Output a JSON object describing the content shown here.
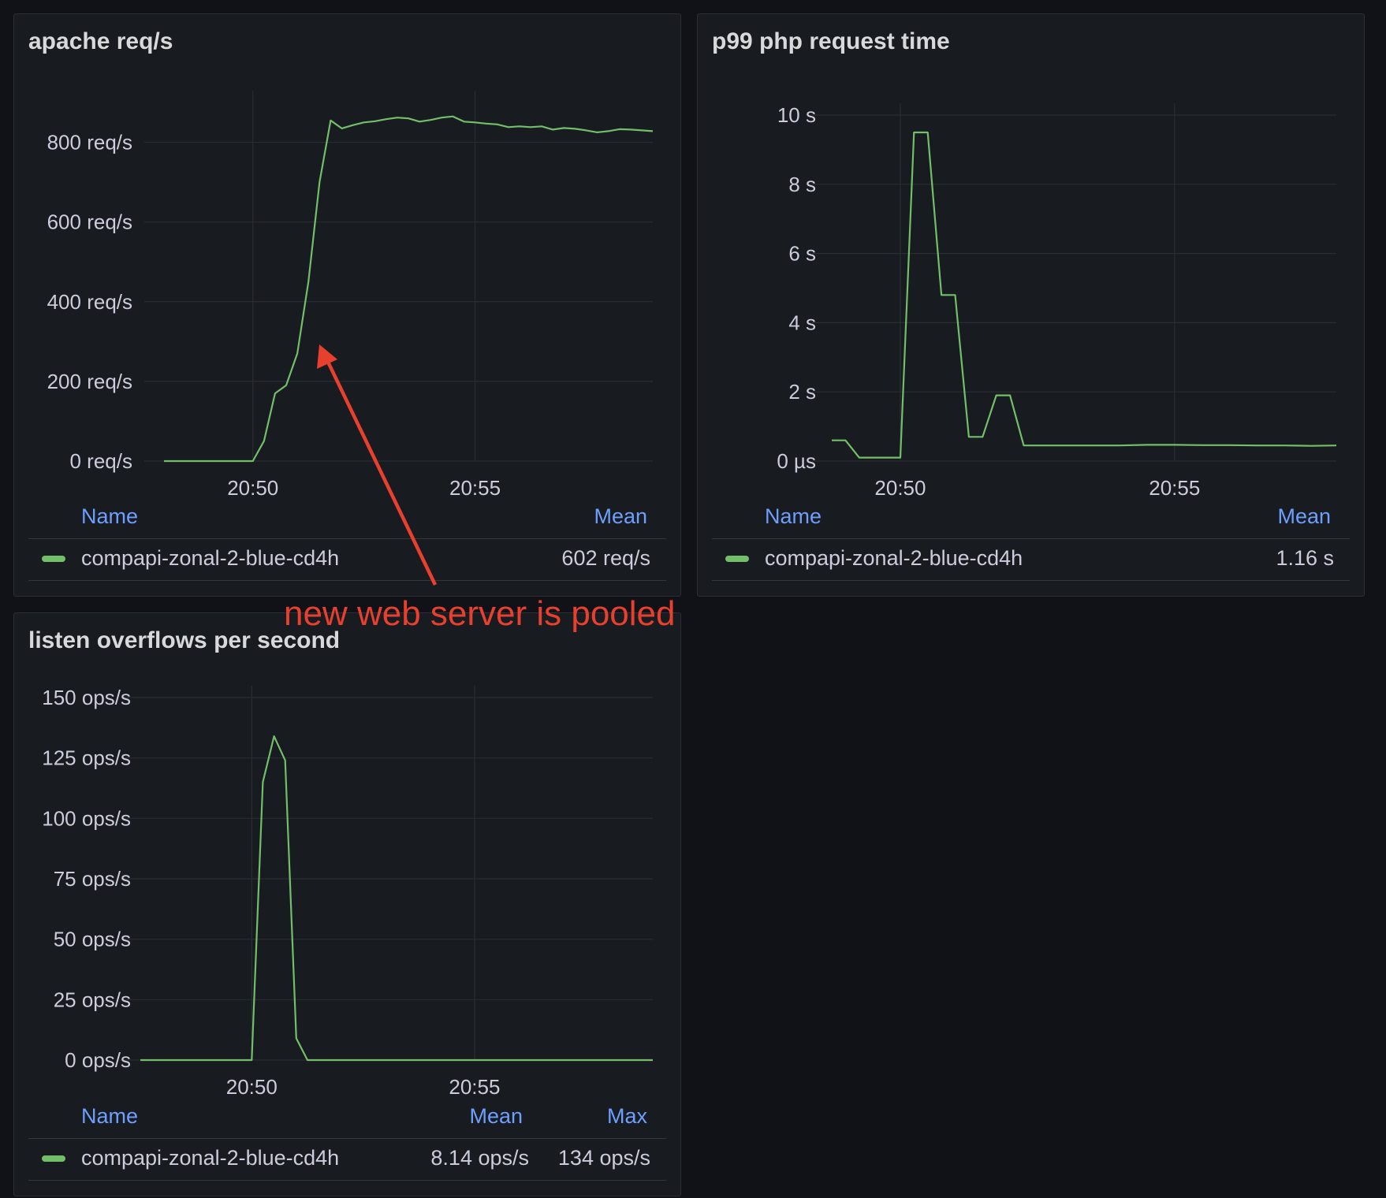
{
  "annotation": {
    "text": "new web server is pooled",
    "color": "#e8402f"
  },
  "colors": {
    "series": "#73bf69",
    "legend_header": "#6e9fff",
    "panel_bg": "#181b1f",
    "page_bg": "#111217"
  },
  "panels": [
    {
      "title": "apache req/s",
      "legend": {
        "headers": [
          "Name",
          "Mean"
        ],
        "rows": [
          {
            "name": "compapi-zonal-2-blue-cd4h",
            "values": [
              "602 req/s"
            ]
          }
        ]
      }
    },
    {
      "title": "p99 php request time",
      "legend": {
        "headers": [
          "Name",
          "Mean"
        ],
        "rows": [
          {
            "name": "compapi-zonal-2-blue-cd4h",
            "values": [
              "1.16 s"
            ]
          }
        ]
      }
    },
    {
      "title": "listen overflows per second",
      "legend": {
        "headers": [
          "Name",
          "Mean",
          "Max"
        ],
        "rows": [
          {
            "name": "compapi-zonal-2-blue-cd4h",
            "values": [
              "8.14 ops/s",
              "134 ops/s"
            ]
          }
        ]
      }
    }
  ],
  "chart_data": [
    {
      "type": "line",
      "title": "apache req/s",
      "xlabel": "",
      "ylabel": "",
      "x_unit": "minutes",
      "x_ticks": [
        {
          "value": 1250,
          "label": "20:50"
        },
        {
          "value": 1255,
          "label": "20:55"
        }
      ],
      "xlim": [
        1248,
        1259
      ],
      "ylim": [
        0,
        900
      ],
      "y_ticks": [
        {
          "value": 0,
          "label": "0 req/s"
        },
        {
          "value": 200,
          "label": "200 req/s"
        },
        {
          "value": 400,
          "label": "400 req/s"
        },
        {
          "value": 600,
          "label": "600 req/s"
        },
        {
          "value": 800,
          "label": "800 req/s"
        }
      ],
      "grid": true,
      "series": [
        {
          "name": "compapi-zonal-2-blue-cd4h",
          "x": [
            1248.0,
            1248.25,
            1248.5,
            1248.75,
            1249.0,
            1249.25,
            1249.5,
            1249.75,
            1250.0,
            1250.25,
            1250.5,
            1250.75,
            1251.0,
            1251.25,
            1251.5,
            1251.75,
            1252.0,
            1252.25,
            1252.5,
            1252.75,
            1253.0,
            1253.25,
            1253.5,
            1253.75,
            1254.0,
            1254.25,
            1254.5,
            1254.75,
            1255.0,
            1255.25,
            1255.5,
            1255.75,
            1256.0,
            1256.25,
            1256.5,
            1256.75,
            1257.0,
            1257.25,
            1257.5,
            1257.75,
            1258.0,
            1258.25,
            1258.5,
            1258.75,
            1259.0
          ],
          "values": [
            0,
            0,
            0,
            0,
            0,
            0,
            0,
            0,
            0,
            50,
            170,
            190,
            270,
            450,
            700,
            855,
            835,
            843,
            850,
            853,
            858,
            862,
            860,
            852,
            856,
            862,
            865,
            852,
            850,
            847,
            845,
            838,
            840,
            838,
            840,
            832,
            836,
            834,
            830,
            825,
            828,
            833,
            832,
            830,
            828
          ]
        }
      ]
    },
    {
      "type": "line",
      "title": "p99 php request time",
      "xlabel": "",
      "ylabel": "",
      "x_unit": "minutes",
      "x_ticks": [
        {
          "value": 1250,
          "label": "20:50"
        },
        {
          "value": 1255,
          "label": "20:55"
        }
      ],
      "xlim": [
        1248.75,
        1257.95
      ],
      "ylim": [
        0,
        10
      ],
      "y_ticks": [
        {
          "value": 0,
          "label": "0 µs"
        },
        {
          "value": 2,
          "label": "2 s"
        },
        {
          "value": 4,
          "label": "4 s"
        },
        {
          "value": 6,
          "label": "6 s"
        },
        {
          "value": 8,
          "label": "8 s"
        },
        {
          "value": 10,
          "label": "10 s"
        }
      ],
      "grid": true,
      "series": [
        {
          "name": "compapi-zonal-2-blue-cd4h",
          "x": [
            1248.75,
            1249.0,
            1249.25,
            1249.5,
            1249.75,
            1250.0,
            1250.25,
            1250.5,
            1250.75,
            1251.0,
            1251.25,
            1251.5,
            1251.75,
            1252.0,
            1252.25,
            1252.5,
            1252.75,
            1253.0,
            1253.5,
            1254.0,
            1254.5,
            1255.0,
            1255.5,
            1256.0,
            1256.5,
            1257.0,
            1257.5,
            1257.95
          ],
          "values": [
            0.6,
            0.6,
            0.1,
            0.1,
            0.1,
            0.1,
            9.5,
            9.5,
            4.8,
            4.8,
            0.7,
            0.7,
            1.9,
            1.9,
            0.45,
            0.45,
            0.45,
            0.45,
            0.45,
            0.45,
            0.47,
            0.47,
            0.46,
            0.46,
            0.45,
            0.45,
            0.44,
            0.45
          ]
        }
      ]
    },
    {
      "type": "line",
      "title": "listen overflows per second",
      "xlabel": "",
      "ylabel": "",
      "x_unit": "minutes",
      "x_ticks": [
        {
          "value": 1250,
          "label": "20:50"
        },
        {
          "value": 1255,
          "label": "20:55"
        }
      ],
      "xlim": [
        1247.5,
        1259.0
      ],
      "ylim": [
        0,
        150
      ],
      "y_ticks": [
        {
          "value": 0,
          "label": "0 ops/s"
        },
        {
          "value": 25,
          "label": "25 ops/s"
        },
        {
          "value": 50,
          "label": "50 ops/s"
        },
        {
          "value": 75,
          "label": "75 ops/s"
        },
        {
          "value": 100,
          "label": "100 ops/s"
        },
        {
          "value": 125,
          "label": "125 ops/s"
        },
        {
          "value": 150,
          "label": "150 ops/s"
        }
      ],
      "grid": true,
      "series": [
        {
          "name": "compapi-zonal-2-blue-cd4h",
          "x": [
            1247.5,
            1249.0,
            1250.0,
            1250.25,
            1250.5,
            1250.75,
            1251.0,
            1251.25,
            1252.0,
            1254.0,
            1256.0,
            1258.0,
            1259.0
          ],
          "values": [
            0,
            0,
            0,
            115,
            134,
            124,
            9,
            0,
            0,
            0,
            0,
            0,
            0
          ]
        }
      ]
    }
  ]
}
